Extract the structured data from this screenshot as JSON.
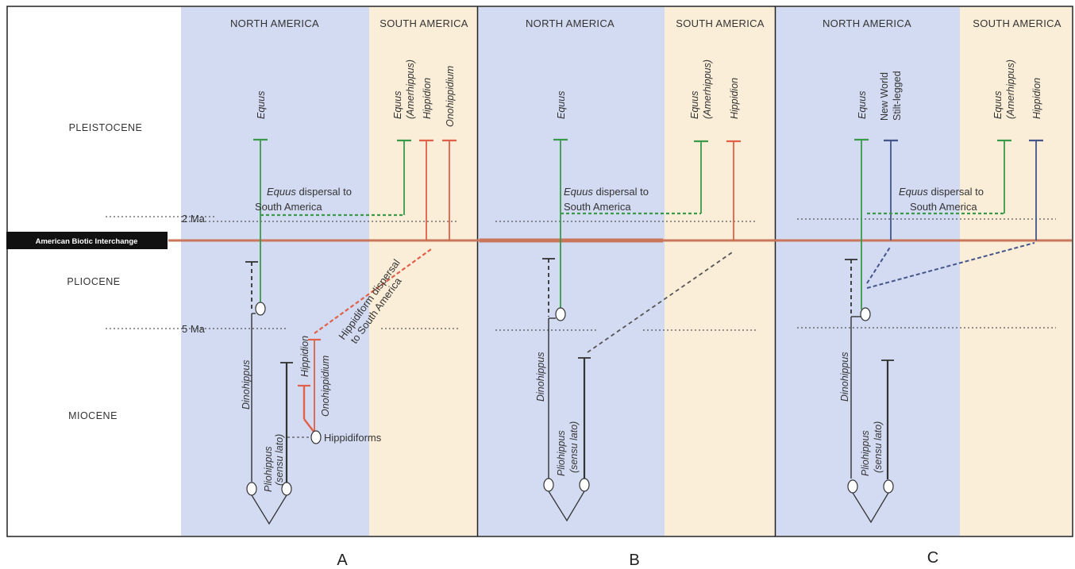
{
  "epochs": [
    "PLEISTOCENE",
    "PLIOCENE",
    "MIOCENE"
  ],
  "time_marks": {
    "ma2": "2 Ma",
    "ma5": "5 Ma"
  },
  "interchange_label": "American Biotic Interchange",
  "regions": {
    "north": "NORTH AMERICA",
    "south": "SOUTH AMERICA"
  },
  "taxa": {
    "equus": "Equus",
    "equus_amerhippus_1": "Equus",
    "equus_amerhippus_2": "(Amerhippus)",
    "hippidion": "Hippidion",
    "onohippidium": "Onohippidium",
    "dinohippus": "Dinohippus",
    "pliohippus_1": "Pliohippus",
    "pliohippus_2": "(sensu lato)",
    "stilt_1": "New World",
    "stilt_2": "Stilt-legged",
    "hippidiforms": "Hippidiforms"
  },
  "notes": {
    "equus_dispersal_italic": "Equus",
    "equus_dispersal_rest": " dispersal to",
    "equus_dispersal_line2": "South America",
    "hippidiform_line1": "Hippidiform dispersal",
    "hippidiform_line2": "to South America"
  },
  "panel_labels": [
    "A",
    "B",
    "C"
  ],
  "colors": {
    "north_bg": "#d3dbf2",
    "south_bg": "#fbeed8",
    "equus": "#3a9a4a",
    "hippidion": "#e0604a",
    "stilt": "#44558a",
    "interchange": "#c9765a",
    "neutral": "#333333"
  }
}
